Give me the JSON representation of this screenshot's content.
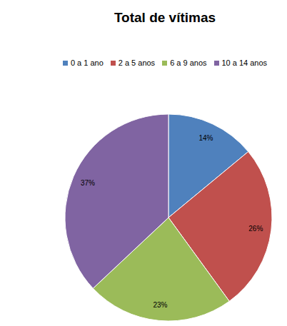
{
  "chart_data": {
    "type": "pie",
    "title": "Total de vítimas",
    "categories": [
      "0 a 1 ano",
      "2 a 5 anos",
      "6 a 9 anos",
      "10 a 14 anos"
    ],
    "values": [
      14,
      26,
      23,
      37
    ],
    "value_labels": [
      "14%",
      "26%",
      "23%",
      "37%"
    ],
    "colors": [
      "#4f81bd",
      "#c0504d",
      "#9bbb59",
      "#8064a2"
    ],
    "data_labels": true,
    "legend": "top"
  }
}
